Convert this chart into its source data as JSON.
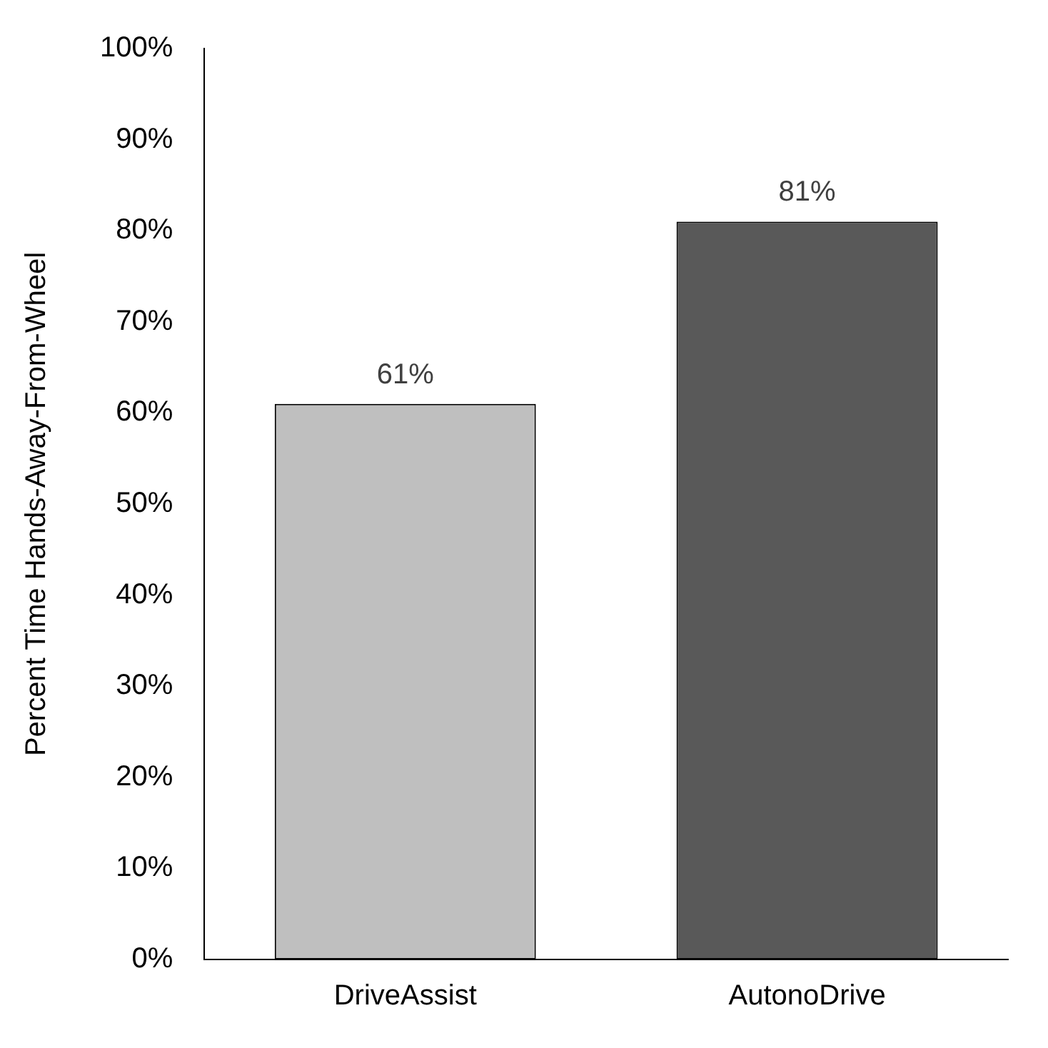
{
  "chart_data": {
    "type": "bar",
    "ylabel": "Percent Time Hands-Away-From-Wheel",
    "categories": [
      "DriveAssist",
      "AutonoDrive"
    ],
    "values": [
      61,
      81
    ],
    "colors": [
      "#bfbfbf",
      "#595959"
    ],
    "value_labels": [
      "61%",
      "81%"
    ],
    "ylim": [
      0,
      100
    ],
    "yticks": [
      {
        "value": 0,
        "label": "0%"
      },
      {
        "value": 10,
        "label": "10%"
      },
      {
        "value": 20,
        "label": "20%"
      },
      {
        "value": 30,
        "label": "30%"
      },
      {
        "value": 40,
        "label": "40%"
      },
      {
        "value": 50,
        "label": "50%"
      },
      {
        "value": 60,
        "label": "60%"
      },
      {
        "value": 70,
        "label": "70%"
      },
      {
        "value": 80,
        "label": "80%"
      },
      {
        "value": 90,
        "label": "90%"
      },
      {
        "value": 100,
        "label": "100%"
      }
    ],
    "grid": false,
    "legend": false
  }
}
